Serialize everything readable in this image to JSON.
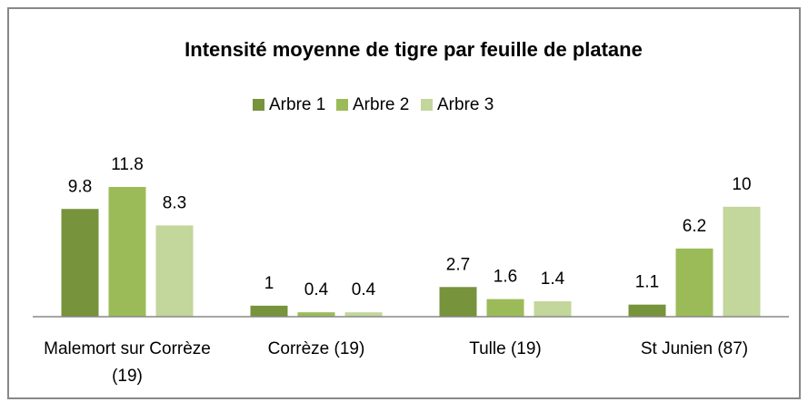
{
  "chart_data": {
    "type": "bar",
    "title": "Intensité moyenne de tigre par feuille de platane",
    "categories": [
      "Malemort sur Corrèze (19)",
      "Corrèze (19)",
      "Tulle (19)",
      "St Junien (87)"
    ],
    "series": [
      {
        "name": "Arbre 1",
        "color": "#77933c",
        "values": [
          9.8,
          1,
          2.7,
          1.1
        ]
      },
      {
        "name": "Arbre 2",
        "color": "#9bbb59",
        "values": [
          11.8,
          0.4,
          1.6,
          6.2
        ]
      },
      {
        "name": "Arbre 3",
        "color": "#c3d69b",
        "values": [
          8.3,
          0.4,
          1.4,
          10
        ]
      }
    ],
    "ylim": [
      0,
      12
    ],
    "legend": "top"
  }
}
